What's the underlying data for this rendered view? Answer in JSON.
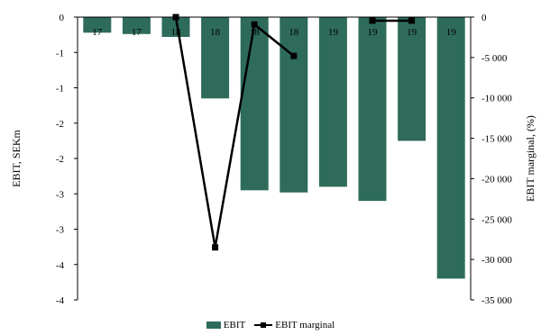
{
  "chart_data": {
    "type": "bar",
    "categories": [
      "17",
      "17",
      "18",
      "18",
      "18",
      "18",
      "19",
      "19",
      "19",
      "19"
    ],
    "series": [
      {
        "name": "EBIT",
        "type": "bar",
        "axis": "left",
        "color": "#2e6b5b",
        "values": [
          -0.22,
          -0.24,
          -0.28,
          -1.15,
          -2.45,
          -2.48,
          -2.4,
          -2.6,
          -1.75,
          -3.7
        ]
      },
      {
        "name": "EBIT marginal",
        "type": "line",
        "axis": "right",
        "color": "#000000",
        "values": [
          null,
          null,
          0,
          -28500,
          -900,
          -4800,
          null,
          -450,
          -450,
          null
        ]
      }
    ],
    "ylabel": "EBIT, SEKm",
    "y2label": "EBIT marginal, (%)",
    "ylim": [
      -4,
      0
    ],
    "y2lim": [
      -35000,
      0
    ],
    "yticks": [
      "0",
      "-1",
      "-1",
      "-2",
      "-2",
      "-3",
      "-3",
      "-4",
      "-4"
    ],
    "y2ticks": [
      "0",
      "-5 000",
      "-10 000",
      "-15 000",
      "-20 000",
      "-25 000",
      "-30 000",
      "-35 000"
    ],
    "legend": "bottom",
    "grid": false
  }
}
